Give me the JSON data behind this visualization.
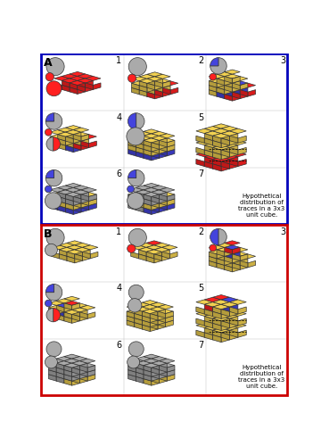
{
  "colors": {
    "RED": "#ff2020",
    "BLUE": "#4444dd",
    "YELLOW": "#f0d050",
    "GRAY": "#aaaaaa",
    "OUTLINE": "#333333"
  },
  "caption": "Hypothetical\ndistribution of\ntraces in a 3x3\nunit cube.",
  "panel_A_border": "#0000bb",
  "panel_B_border": "#cc0000"
}
